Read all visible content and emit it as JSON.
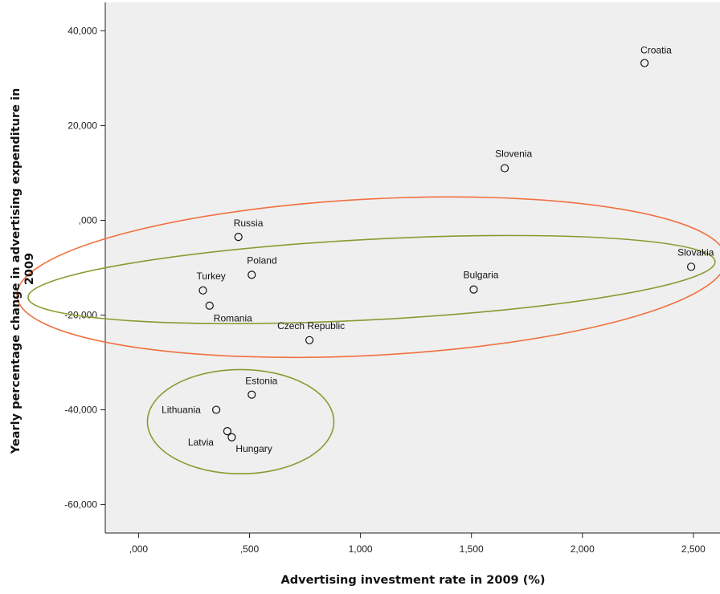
{
  "chart_data": {
    "type": "scatter",
    "title": "",
    "xlabel": "Advertising investment rate in 2009 (%)",
    "ylabel_lines": [
      "Yearly percentage change in advertising expenditure in",
      "2009"
    ],
    "xlim": [
      -0.15,
      2.62
    ],
    "ylim": [
      -66,
      46
    ],
    "xticks": [
      0,
      0.5,
      1.0,
      1.5,
      2.0,
      2.5
    ],
    "xtick_labels": [
      ",000",
      ",500",
      "1,000",
      "1,500",
      "2,000",
      "2,500"
    ],
    "yticks": [
      40,
      20,
      0,
      -20,
      -40,
      -60
    ],
    "ytick_labels": [
      "40,000",
      "20,000",
      ",000",
      "-20,000",
      "-40,000",
      "-60,000"
    ],
    "grid": false,
    "background": "#efefef",
    "points": [
      {
        "label": "Croatia",
        "x": 2.28,
        "y": 33.2
      },
      {
        "label": "Slovenia",
        "x": 1.65,
        "y": 11.0
      },
      {
        "label": "Russia",
        "x": 0.45,
        "y": -3.5
      },
      {
        "label": "Slovakia",
        "x": 2.49,
        "y": -9.8
      },
      {
        "label": "Poland",
        "x": 0.51,
        "y": -11.5
      },
      {
        "label": "Turkey",
        "x": 0.29,
        "y": -14.8
      },
      {
        "label": "Bulgaria",
        "x": 1.51,
        "y": -14.6
      },
      {
        "label": "Romania",
        "x": 0.32,
        "y": -18.0
      },
      {
        "label": "Czech Republic",
        "x": 0.77,
        "y": -25.3
      },
      {
        "label": "Estonia",
        "x": 0.51,
        "y": -36.8
      },
      {
        "label": "Lithuania",
        "x": 0.35,
        "y": -40.0
      },
      {
        "label": "Latvia",
        "x": 0.4,
        "y": -44.5
      },
      {
        "label": "Hungary",
        "x": 0.42,
        "y": -45.8
      }
    ],
    "annotations": [
      {
        "shape": "ellipse",
        "color": "#f07040",
        "cx": 1.05,
        "cy": -12.0,
        "rx": 1.6,
        "ry": 16.5,
        "angle_deg": -3
      },
      {
        "shape": "ellipse",
        "color": "#8a9a30",
        "cx": 1.05,
        "cy": -12.5,
        "rx": 1.55,
        "ry": 8.5,
        "angle_deg": -3
      },
      {
        "shape": "ellipse",
        "color": "#8a9a30",
        "cx": 0.46,
        "cy": -42.5,
        "rx": 0.42,
        "ry": 11.0,
        "angle_deg": 0
      }
    ]
  }
}
